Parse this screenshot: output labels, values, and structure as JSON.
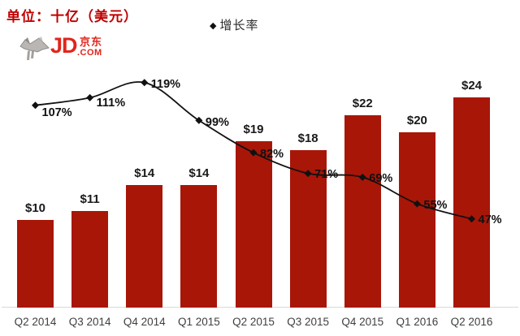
{
  "header": {
    "unit_label": "单位：十亿（美元）",
    "legend_marker": "◆",
    "legend_label": "增长率"
  },
  "logo": {
    "jd": "JD",
    "com": ".COM",
    "cn": "京东"
  },
  "colors": {
    "bar": "#A81608",
    "title_red": "#C00000",
    "logo_red": "#E1251B",
    "line": "#111111",
    "axis_text": "#3F3F3F",
    "baseline": "#D9D9D9",
    "mascot_gray": "#A9A6A4"
  },
  "chart_data": {
    "type": "bar",
    "title": "单位：十亿（美元）",
    "categories": [
      "Q2 2014",
      "Q3 2014",
      "Q4 2014",
      "Q1 2015",
      "Q2 2015",
      "Q3 2015",
      "Q4 2015",
      "Q1 2016",
      "Q2 2016"
    ],
    "series": [
      {
        "type": "bar",
        "unit": "十亿美元",
        "values": [
          10,
          11,
          14,
          14,
          19,
          18,
          22,
          20,
          24
        ],
        "labels": [
          "$10",
          "$11",
          "$14",
          "$14",
          "$19",
          "$18",
          "$22",
          "$20",
          "$24"
        ],
        "color": "#A81608"
      },
      {
        "type": "line",
        "name": "增长率",
        "marker": "diamond",
        "values": [
          107,
          111,
          119,
          99,
          82,
          71,
          69,
          55,
          47
        ],
        "labels": [
          "107%",
          "111%",
          "119%",
          "99%",
          "82%",
          "71%",
          "69%",
          "55%",
          "47%"
        ],
        "color": "#111111"
      }
    ],
    "grid": false,
    "legend_position": "top-center",
    "x_axis_line": true
  }
}
